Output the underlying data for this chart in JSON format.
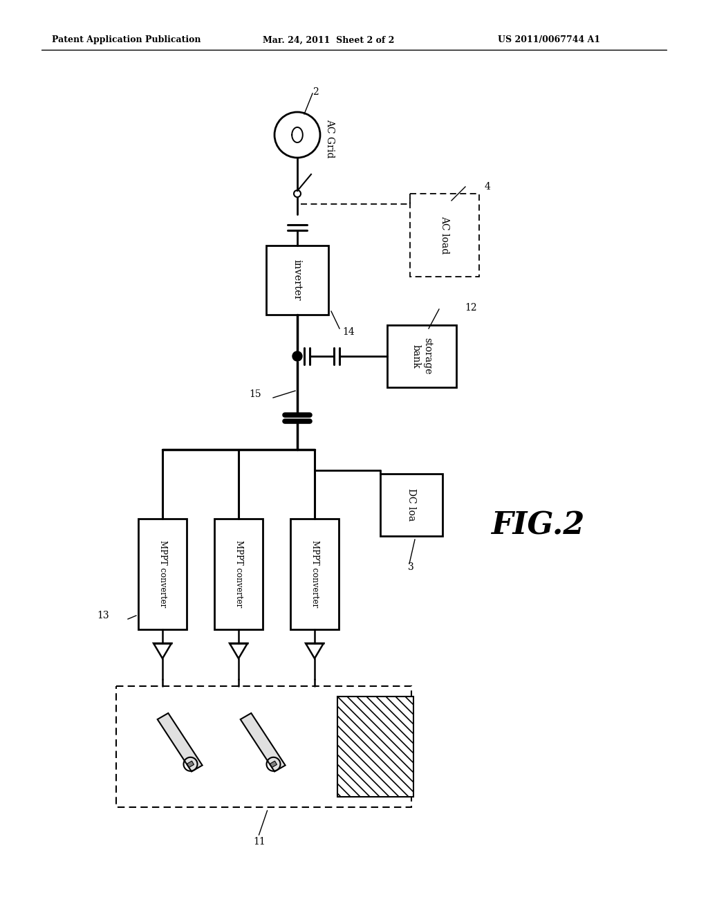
{
  "bg_color": "#ffffff",
  "line_color": "#000000",
  "header_text": [
    "Patent Application Publication",
    "Mar. 24, 2011  Sheet 2 of 2",
    "US 2011/0067744 A1"
  ],
  "fig_label": "FIG.2",
  "component_labels": {
    "ac_grid": "AC Grid",
    "ac_load": "AC load",
    "inverter": "inverter",
    "storage_bank": "storage\nbank",
    "dc_load": "DC loa",
    "mppt1": "MPPT converter",
    "mppt2": "MPPT converter",
    "mppt3": "MPPT converter"
  },
  "ref_numbers": {
    "n2": "2",
    "n4": "4",
    "n14": "14",
    "n12": "12",
    "n15": "15",
    "n3": "3",
    "n13": "13",
    "n11": "11"
  }
}
